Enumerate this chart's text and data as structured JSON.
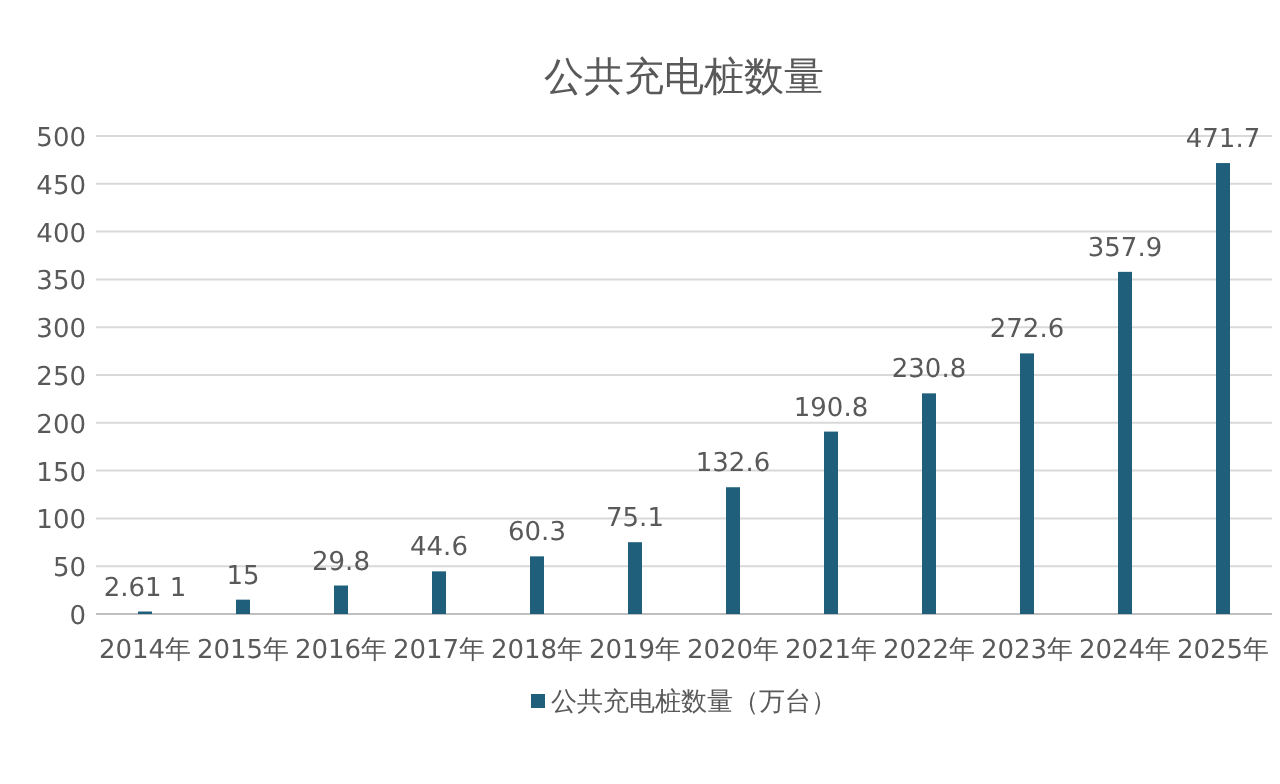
{
  "chart_data": {
    "type": "bar",
    "title": "公共充电桩数量",
    "categories": [
      "2014年",
      "2015年",
      "2016年",
      "2017年",
      "2018年",
      "2019年",
      "2020年",
      "2021年",
      "2022年",
      "2023年",
      "2024年",
      "2025年"
    ],
    "series": [
      {
        "name": "公共充电桩数量（万台）",
        "color": "#1f5f7b",
        "values": [
          2.61,
          15,
          29.8,
          44.6,
          60.3,
          75.1,
          132.6,
          190.8,
          230.8,
          272.6,
          357.9,
          471.7
        ],
        "value_labels": [
          "2.61 1",
          "15",
          "29.8",
          "44.6",
          "60.3",
          "75.1",
          "132.6",
          "190.8",
          "230.8",
          "272.6",
          "357.9",
          "471.7"
        ]
      }
    ],
    "ylim": [
      0,
      500
    ],
    "yticks": [
      0,
      50,
      100,
      150,
      200,
      250,
      300,
      350,
      400,
      450,
      500
    ],
    "grid": "y",
    "legend": "bottom"
  }
}
